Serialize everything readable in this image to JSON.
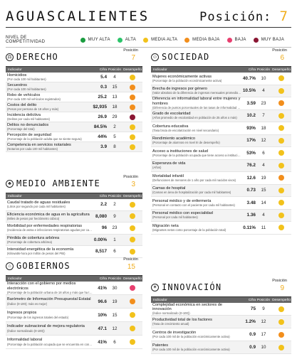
{
  "header": {
    "title": "AGUASCALIENTES",
    "position_label": "Posición:",
    "position_value": "7"
  },
  "legend": {
    "title": "Nivel de competitividad",
    "items": [
      {
        "label": "Muy alta",
        "color": "#1a9c3f"
      },
      {
        "label": "Alta",
        "color": "#2cc46a"
      },
      {
        "label": "Media alta",
        "color": "#f2c21b"
      },
      {
        "label": "Media baja",
        "color": "#f28e1c"
      },
      {
        "label": "Baja",
        "color": "#e83f6f"
      },
      {
        "label": "Muy baja",
        "color": "#8a1633"
      }
    ]
  },
  "table_headers": {
    "indicator": "Indicador",
    "value": "Cifra",
    "position": "Posición",
    "performance": "Desempeño"
  },
  "position_word": "Posición",
  "sections": [
    {
      "name": "DERECHO",
      "icon": "gavel-icon",
      "glyph": "⚖",
      "position": "7",
      "rows": [
        {
          "name": "Homicidios",
          "sub": "(Por cada 100 mil habitantes)",
          "value": "5.4",
          "pos": "4",
          "color": "#f2c21b"
        },
        {
          "name": "Secuestros",
          "sub": "(Por cada 100 mil habitantes)",
          "value": "0.3",
          "pos": "15",
          "color": "#f28e1c"
        },
        {
          "name": "Robo de vehículos",
          "sub": "(Por cada 100 mil vehículos registrados)",
          "value": "25.2",
          "pos": "13",
          "color": "#f28e1c"
        },
        {
          "name": "Costos del delito",
          "sub": "(Pesos por persona de 18 años y más)",
          "value": "$2,935",
          "pos": "18",
          "color": "#f28e1c"
        },
        {
          "name": "Incidencia delictiva",
          "sub": "(Delitos por cada mil habitantes)",
          "value": "26.9",
          "pos": "29",
          "color": "#8a1633"
        },
        {
          "name": "Delitos no denunciados",
          "sub": "(Porcentaje del total)",
          "value": "84.5%",
          "pos": "2",
          "color": "#f2c21b"
        },
        {
          "name": "Percepción de seguridad",
          "sub": "(Porcentaje de la población adulta que se siente segura)",
          "value": "44%",
          "pos": "5",
          "color": "#f2c21b"
        },
        {
          "name": "Competencia en servicios notariales",
          "sub": "(Notarios por cada 100 mil habitantes)",
          "value": "3.9",
          "pos": "8",
          "color": "#f2c21b"
        }
      ]
    },
    {
      "name": "MEDIO AMBIENTE",
      "icon": "leaf-icon",
      "glyph": "♣",
      "position": "3",
      "rows": [
        {
          "name": "Caudal tratado de aguas residuales",
          "sub": "(Litros por segundo por cada mil habitantes)",
          "value": "2.2",
          "pos": "2",
          "color": "#f2c21b"
        },
        {
          "name": "Eficiencia económica de agua en la agricultura",
          "sub": "(Miles de pesos por hectómetro cúbico)",
          "value": "8,080",
          "pos": "9",
          "color": "#f2c21b"
        },
        {
          "name": "Morbilidad por enfermedades respiratorias",
          "sub": "(Incidencia de asma e infecciones respiratorias agudas por cada 100 mil habitantes)",
          "value": "96",
          "pos": "23",
          "color": "#f2c21b"
        },
        {
          "name": "Pérdida de cobertura arbórea",
          "sub": "(Porcentaje de cobertura arbórea)",
          "value": "0.00%",
          "pos": "1",
          "color": "#f2c21b"
        },
        {
          "name": "Intensidad energética de la economía",
          "sub": "(Kilowatts-hora por millón de pesos del PIB)",
          "value": "8,517",
          "pos": "6",
          "color": "#f2c21b"
        }
      ]
    },
    {
      "name": "GOBIERNOS",
      "icon": "government-building-icon",
      "glyph": "⌂",
      "position": "15",
      "rows": [
        {
          "name": "Interacción con el gobierno por medios electrónicos",
          "sub": "(Porcentaje de la población urbana de 18 años y más que ha tenido al menos una interacción)",
          "value": "41%",
          "pos": "30",
          "color": "#e83f6f"
        },
        {
          "name": "Barómetro de Información Presupuestal Estatal",
          "sub": "(Índice (0-100); más es mejor)",
          "value": "96.6",
          "pos": "19",
          "color": "#f28e1c"
        },
        {
          "name": "Ingresos propios",
          "sub": "(Porcentaje de los ingresos totales del estado)",
          "value": "10%",
          "pos": "15",
          "color": "#f2c21b"
        },
        {
          "name": "Indicador subnacional de mejora regulatoria",
          "sub": "(Índice normalizado (0-100))",
          "value": "47.1",
          "pos": "12",
          "color": "#f2c21b"
        },
        {
          "name": "Informalidad laboral",
          "sub": "(Porcentaje de la población ocupada que se encuentra en condición de informalidad laboral)",
          "value": "41%",
          "pos": "6",
          "color": "#f2c21b"
        }
      ]
    },
    {
      "name": "SOCIEDAD",
      "icon": "people-icon",
      "glyph": "☺",
      "position": "6",
      "rows": [
        {
          "name": "Mujeres económicamente activas",
          "sub": "(Porcentaje de la población económicamente activa)",
          "value": "40.7%",
          "pos": "10",
          "color": "#f2c21b"
        },
        {
          "name": "Brecha de ingresos por género",
          "sub": "(Valor absoluto de la diferencia de ingresos mensuales promedio de mujeres y hombres dividida entre los ingresos mensuales promedio de los hombres)",
          "value": "10.5%",
          "pos": "4",
          "color": "#f2c21b"
        },
        {
          "name": "Diferencia en informalidad laboral entre mujeres y hombres",
          "sub": "(Diferencia de puntos porcentuales de las tasas de informalidad entre mujeres y hombres)",
          "value": "3.59",
          "pos": "23",
          "color": "#f28e1c"
        },
        {
          "name": "Grado de escolaridad",
          "sub": "(Años promedio de escolaridad en población de 25 años o más)",
          "value": "10.2",
          "pos": "7",
          "color": "#f2c21b"
        },
        {
          "name": "Cobertura educativa",
          "sub": "(Tasa bruta de escolarización en nivel secundario)",
          "value": "93%",
          "pos": "18",
          "color": "#f2c21b"
        },
        {
          "name": "Rendimiento académico",
          "sub": "(Porcentaje de alumnos en nivel III de desempeño)",
          "value": "17%",
          "pos": "12",
          "color": "#f2c21b"
        },
        {
          "name": "Acceso a instituciones de salud",
          "sub": "(Porcentaje de la población ocupada que tiene acceso a instituciones de salud)",
          "value": "53%",
          "pos": "6",
          "color": "#f2c21b"
        },
        {
          "name": "Esperanza de vida",
          "sub": "(Años)",
          "value": "76.2",
          "pos": "4",
          "color": "#f2c21b"
        },
        {
          "name": "Mortalidad infantil",
          "sub": "(Defunciones de menores de 1 año por cada mil nacidos vivos)",
          "value": "12.6",
          "pos": "19",
          "color": "#f28e1c"
        },
        {
          "name": "Camas de hospital",
          "sub": "(Camas en área de hospitalización por cada mil habitantes)",
          "value": "0.73",
          "pos": "15",
          "color": "#f2c21b"
        },
        {
          "name": "Personal médico y de enfermería",
          "sub": "(Personal en contacto con el paciente por cada mil habitantes)",
          "value": "3.48",
          "pos": "14",
          "color": "#f2c21b"
        },
        {
          "name": "Personal médico con especialidad",
          "sub": "(Personal por cada mil habitantes)",
          "value": "1.36",
          "pos": "4",
          "color": "#f2c21b"
        },
        {
          "name": "Migración neta",
          "sub": "(Migrantes netos como porcentaje de la población total)",
          "value": "0.11%",
          "pos": "11",
          "color": "#f2c21b"
        }
      ]
    },
    {
      "name": "INNOVACIÓN",
      "icon": "lightbulb-icon",
      "glyph": "✶",
      "position": "9",
      "rows": [
        {
          "name": "Complejidad económica en sectores de innovación",
          "sub": "(Índice normalizado (0-100))",
          "value": "75",
          "pos": "9",
          "color": "#f2c21b"
        },
        {
          "name": "Productividad total de los factores",
          "sub": "(Tasa de crecimiento anual)",
          "value": "1.2%",
          "pos": "12",
          "color": "#f2c21b"
        },
        {
          "name": "Centros de investigación",
          "sub": "(Por cada 100 mil de la población económicamente activa)",
          "value": "0.9",
          "pos": "17",
          "color": "#f28e1c"
        },
        {
          "name": "Patentes",
          "sub": "(Por cada 100 mil de la población económicamente activa)",
          "value": "0.9",
          "pos": "10",
          "color": "#f2c21b"
        }
      ]
    }
  ]
}
